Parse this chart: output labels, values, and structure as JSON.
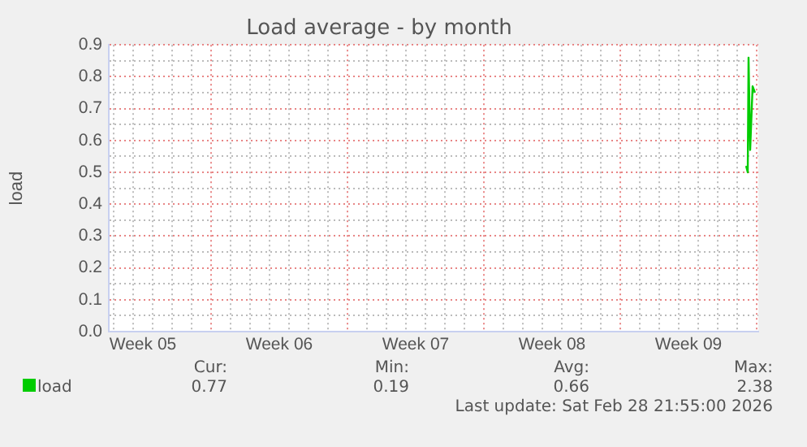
{
  "chart_data": {
    "type": "line",
    "title": "Load average - by month",
    "ylabel": "load",
    "x": [
      "2026-02-28T11:00",
      "2026-02-28T13:00",
      "2026-02-28T14:00",
      "2026-02-28T16:00",
      "2026-02-28T19:00",
      "2026-02-28T21:55"
    ],
    "series": [
      {
        "name": "load",
        "color": "#00cc00",
        "values": [
          0.52,
          0.5,
          0.86,
          0.57,
          0.77,
          0.75
        ]
      }
    ],
    "xlim": [
      "2026-01-26T18:00",
      "2026-03-01T02:00"
    ],
    "xticks": [
      {
        "value": "2026-01-28T12:00",
        "label": "Week 05"
      },
      {
        "value": "2026-02-04T12:00",
        "label": "Week 06"
      },
      {
        "value": "2026-02-11T12:00",
        "label": "Week 07"
      },
      {
        "value": "2026-02-18T12:00",
        "label": "Week 08"
      },
      {
        "value": "2026-02-25T12:00",
        "label": "Week 09"
      },
      {
        "value": "2026-01-27",
        "label": null
      },
      {
        "value": "2026-01-28",
        "label": null
      },
      {
        "value": "2026-01-29",
        "label": null
      },
      {
        "value": "2026-01-30",
        "label": null
      },
      {
        "value": "2026-01-31",
        "label": null
      },
      {
        "value": "2026-02-01",
        "label": null
      },
      {
        "value": "2026-02-02",
        "label": null
      },
      {
        "value": "2026-02-03",
        "label": null
      },
      {
        "value": "2026-02-04",
        "label": null
      },
      {
        "value": "2026-02-05",
        "label": null
      },
      {
        "value": "2026-02-06",
        "label": null
      },
      {
        "value": "2026-02-07",
        "label": null
      },
      {
        "value": "2026-02-08",
        "label": null
      },
      {
        "value": "2026-02-09",
        "label": null
      },
      {
        "value": "2026-02-10",
        "label": null
      },
      {
        "value": "2026-02-11",
        "label": null
      },
      {
        "value": "2026-02-12",
        "label": null
      },
      {
        "value": "2026-02-13",
        "label": null
      },
      {
        "value": "2026-02-14",
        "label": null
      },
      {
        "value": "2026-02-15",
        "label": null
      },
      {
        "value": "2026-02-16",
        "label": null
      },
      {
        "value": "2026-02-17",
        "label": null
      },
      {
        "value": "2026-02-18",
        "label": null
      },
      {
        "value": "2026-02-19",
        "label": null
      },
      {
        "value": "2026-02-20",
        "label": null
      },
      {
        "value": "2026-02-21",
        "label": null
      },
      {
        "value": "2026-02-22",
        "label": null
      },
      {
        "value": "2026-02-23",
        "label": null
      },
      {
        "value": "2026-02-24",
        "label": null
      },
      {
        "value": "2026-02-25",
        "label": null
      },
      {
        "value": "2026-02-26",
        "label": null
      },
      {
        "value": "2026-02-27",
        "label": null
      },
      {
        "value": "2026-02-28",
        "label": null
      },
      {
        "value": "2026-03-01",
        "label": null
      }
    ],
    "ylim": [
      0,
      0.9
    ],
    "yticks": [
      {
        "value": 0,
        "label": "0.0"
      },
      0.1,
      0.2,
      0.3,
      0.4,
      0.5,
      0.6,
      0.7,
      0.8,
      0.9,
      {
        "value": 0.05,
        "label": null
      },
      {
        "value": 0.15,
        "label": null
      },
      {
        "value": 0.25,
        "label": null
      },
      {
        "value": 0.35,
        "label": null
      },
      {
        "value": 0.45,
        "label": null
      },
      {
        "value": 0.55,
        "label": null
      },
      {
        "value": 0.65,
        "label": null
      },
      {
        "value": 0.75,
        "label": null
      },
      {
        "value": 0.85,
        "label": null
      }
    ],
    "grid": true,
    "legend": "bottom left",
    "marker": "none",
    "line_style": "solid",
    "annotations": [
      "Cur:",
      "Min:",
      "Avg:",
      "Max:",
      "0.77",
      "0.19",
      "0.66",
      "2.38",
      "Last update: Sat Feb 28 21:55:00 2026"
    ]
  }
}
